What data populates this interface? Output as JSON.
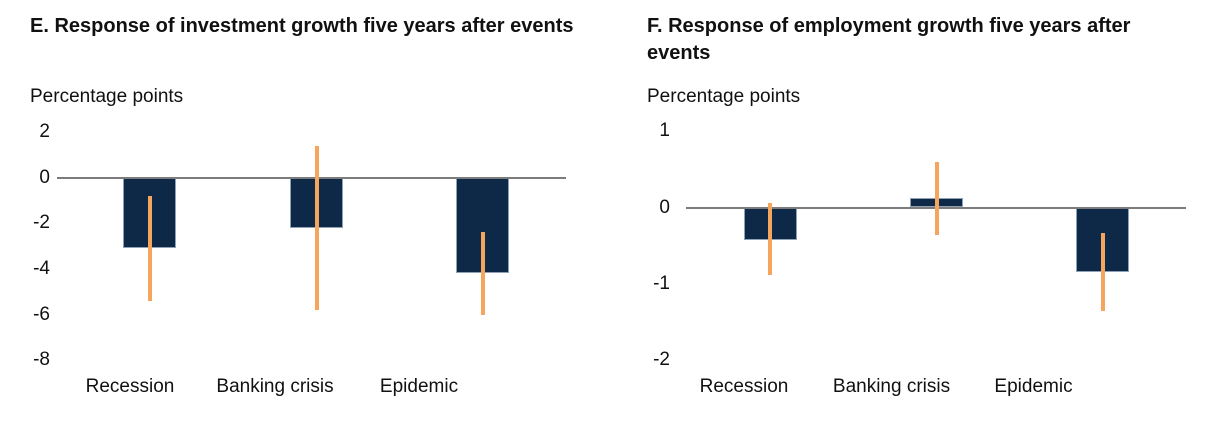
{
  "figure": {
    "description_panels": [
      "E",
      "F"
    ]
  },
  "chart_data": [
    {
      "type": "bar",
      "panel": "E",
      "title": "E. Response of investment growth five years after events",
      "ylabel": "Percentage points",
      "xlabel": "",
      "categories": [
        "Recession",
        "Banking crisis",
        "Epidemic"
      ],
      "values": [
        -3.1,
        -2.2,
        -4.2
      ],
      "error_bars": {
        "low": [
          -5.4,
          -5.8,
          -6.0
        ],
        "high": [
          -0.8,
          1.4,
          -2.4
        ]
      },
      "yticks": [
        2,
        0,
        -2,
        -4,
        -6,
        -8
      ],
      "ylim": [
        -8,
        2
      ],
      "grid": false,
      "legend": false,
      "bar_color": "#0d2947",
      "error_bar_color": "#f5a65c",
      "axis_color": "#7c7c7c"
    },
    {
      "type": "bar",
      "panel": "F",
      "title": "F. Response of employment growth five years after events",
      "ylabel": "Percentage points",
      "xlabel": "",
      "categories": [
        "Recession",
        "Banking crisis",
        "Epidemic"
      ],
      "values": [
        -0.42,
        0.12,
        -0.85
      ],
      "error_bars": {
        "low": [
          -0.88,
          -0.36,
          -1.36
        ],
        "high": [
          0.06,
          0.6,
          -0.34
        ]
      },
      "yticks": [
        1,
        0,
        -1,
        -2
      ],
      "ylim": [
        -2,
        1
      ],
      "grid": false,
      "legend": false,
      "bar_color": "#0d2947",
      "error_bar_color": "#f5a65c",
      "axis_color": "#7c7c7c"
    }
  ]
}
